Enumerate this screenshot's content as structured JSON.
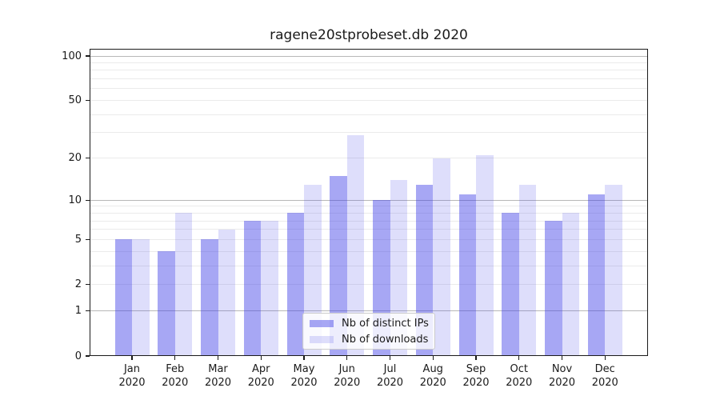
{
  "figure": {
    "title": "ragene20stprobeset.db 2020",
    "background": "#ffffff"
  },
  "chart_data": {
    "type": "bar",
    "title": "ragene20stprobeset.db 2020",
    "categories": [
      "Jan",
      "Feb",
      "Mar",
      "Apr",
      "May",
      "Jun",
      "Jul",
      "Aug",
      "Sep",
      "Oct",
      "Nov",
      "Dec"
    ],
    "category_year": "2020",
    "series": [
      {
        "name": "Nb of distinct IPs",
        "color": "rgba(60,60,230,0.45)",
        "rendered_color": "#a0a0f0",
        "values": [
          5,
          4,
          5,
          7,
          8,
          15,
          10,
          13,
          11,
          8,
          7,
          11
        ]
      },
      {
        "name": "Nb of downloads",
        "color": "rgba(60,60,230,0.17)",
        "rendered_color": "#dcdcfa",
        "values": [
          5,
          8,
          6,
          7,
          13,
          29,
          14,
          20,
          21,
          13,
          8,
          13
        ]
      }
    ],
    "xlabel": "",
    "ylabel": "",
    "y_axis": {
      "scale": "log1p",
      "ticks": [
        0,
        1,
        2,
        5,
        10,
        20,
        50,
        100
      ],
      "minor_gridlines": [
        2,
        3,
        4,
        5,
        6,
        7,
        8,
        9,
        20,
        30,
        40,
        50,
        60,
        70,
        80,
        90
      ],
      "major_gridlines": [
        1,
        10,
        100
      ],
      "ylim": [
        0,
        113
      ]
    },
    "grid": true,
    "legend": {
      "position": "lower center",
      "entries": [
        "Nb of distinct IPs",
        "Nb of downloads"
      ]
    }
  },
  "colors": {
    "bar_distinct_ips": "#a0a0f0",
    "bar_downloads": "#dcdcfa",
    "gridline_minor": "#ebebeb",
    "gridline_major": "#b8b8b8",
    "axis_text": "#1a1a1a",
    "legend_border": "#cccccc"
  }
}
